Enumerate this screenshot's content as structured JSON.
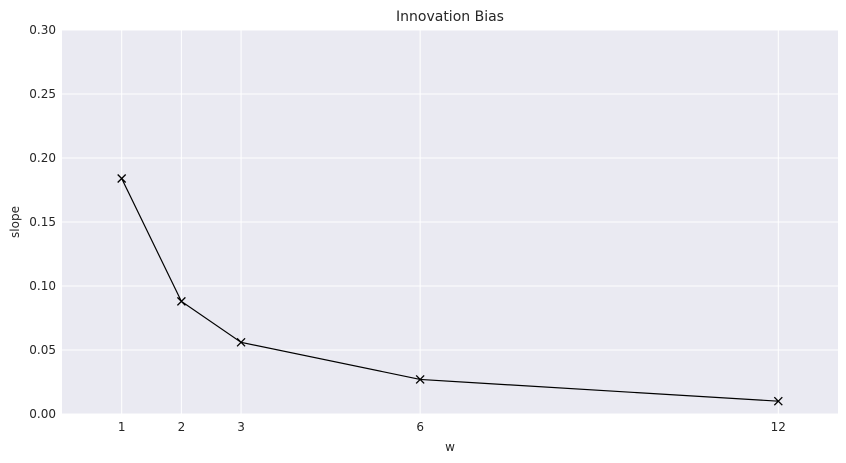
{
  "chart_data": {
    "type": "line",
    "title": "Innovation Bias",
    "xlabel": "w",
    "ylabel": "slope",
    "x": [
      1,
      2,
      3,
      6,
      12
    ],
    "series": [
      {
        "values": [
          0.184,
          0.088,
          0.056,
          0.027,
          0.01
        ],
        "color": "#000000",
        "marker": "x"
      }
    ],
    "xticks": [
      "1",
      "2",
      "3",
      "6",
      "12"
    ],
    "yticks": [
      "0.00",
      "0.05",
      "0.10",
      "0.15",
      "0.20",
      "0.25",
      "0.30"
    ],
    "xlim": [
      0,
      13
    ],
    "ylim": [
      0,
      0.3
    ],
    "grid": true,
    "background": "#eaeaf2",
    "grid_color": "#ffffff"
  }
}
